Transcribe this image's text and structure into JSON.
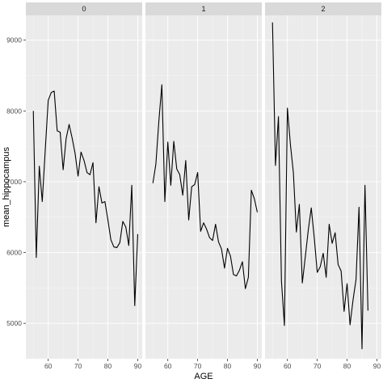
{
  "chart_data": {
    "type": "line",
    "xlabel": "AGE",
    "ylabel": "mean_hippocampus",
    "xlim": [
      52.5,
      91.5
    ],
    "ylim": [
      4500,
      9350
    ],
    "xticks": [
      60,
      70,
      80,
      90
    ],
    "yticks": [
      5000,
      6000,
      7000,
      8000,
      9000
    ],
    "xtick_labels": [
      "60",
      "70",
      "80",
      "90"
    ],
    "ytick_labels": [
      "5000",
      "6000",
      "7000",
      "8000",
      "9000"
    ],
    "grid": true,
    "line_color": "#000000",
    "panel_background": "#ebebeb",
    "strip_background": "#d9d9d9",
    "panels": [
      {
        "label": "0",
        "x": [
          55,
          56,
          57,
          58,
          59,
          60,
          61,
          62,
          63,
          64,
          65,
          66,
          67,
          68,
          69,
          70,
          71,
          72,
          73,
          74,
          75,
          76,
          77,
          78,
          79,
          80,
          81,
          82,
          83,
          84,
          85,
          86,
          87,
          88,
          89,
          90
        ],
        "y": [
          8000,
          5930,
          7220,
          6720,
          7450,
          8150,
          8260,
          8280,
          7720,
          7700,
          7170,
          7610,
          7810,
          7620,
          7400,
          7080,
          7420,
          7300,
          7130,
          7100,
          7270,
          6420,
          6930,
          6700,
          6720,
          6460,
          6180,
          6080,
          6070,
          6140,
          6440,
          6360,
          6100,
          6950,
          5250,
          6260
        ]
      },
      {
        "label": "1",
        "x": [
          55,
          56,
          57,
          58,
          59,
          60,
          61,
          62,
          63,
          64,
          65,
          66,
          67,
          68,
          69,
          70,
          71,
          72,
          73,
          74,
          75,
          76,
          77,
          78,
          79,
          80,
          81,
          82,
          83,
          84,
          85,
          86,
          87,
          88,
          89,
          90
        ],
        "y": [
          6980,
          7250,
          7860,
          8370,
          6720,
          7560,
          6950,
          7570,
          7180,
          7100,
          6810,
          7300,
          6460,
          6930,
          6960,
          7130,
          6300,
          6420,
          6330,
          6210,
          6170,
          6400,
          6150,
          6050,
          5780,
          6060,
          5950,
          5690,
          5670,
          5750,
          5870,
          5490,
          5650,
          6880,
          6760,
          6570
        ]
      },
      {
        "label": "2",
        "x": [
          55,
          56,
          57,
          58,
          59,
          60,
          61,
          62,
          63,
          64,
          65,
          66,
          67,
          68,
          69,
          70,
          71,
          72,
          73,
          74,
          75,
          76,
          77,
          78,
          79,
          80,
          81,
          82,
          83,
          84,
          85,
          86,
          87
        ],
        "y": [
          9250,
          7230,
          7920,
          5600,
          4970,
          8040,
          7530,
          7130,
          6290,
          6680,
          5570,
          5940,
          6320,
          6630,
          6210,
          5720,
          5800,
          5990,
          5650,
          6400,
          6130,
          6280,
          5830,
          5740,
          5170,
          5560,
          4980,
          5330,
          5620,
          6640,
          4640,
          6950,
          5180
        ]
      }
    ]
  }
}
